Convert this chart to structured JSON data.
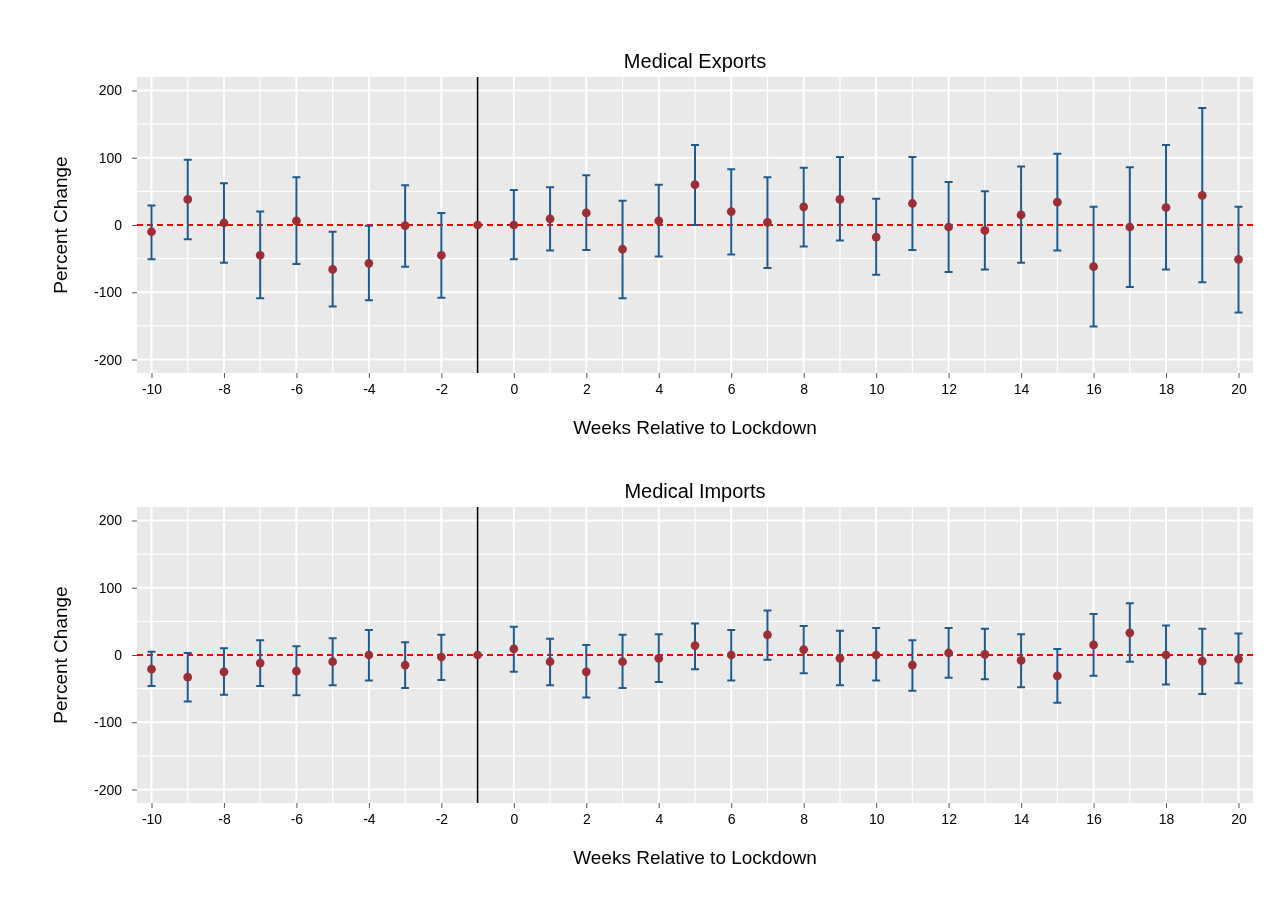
{
  "chart_data": [
    {
      "type": "scatter",
      "title": "Medical Exports",
      "xlabel": "Weeks Relative to Lockdown",
      "ylabel": "Percent Change",
      "x": [
        -10,
        -9,
        -8,
        -7,
        -6,
        -5,
        -4,
        -3,
        -2,
        -1,
        0,
        1,
        2,
        3,
        4,
        5,
        6,
        7,
        8,
        9,
        10,
        11,
        12,
        13,
        14,
        15,
        16,
        17,
        18,
        19,
        20
      ],
      "series": [
        {
          "color": "#9b2f35",
          "values": [
            -10,
            38,
            3,
            -45,
            6,
            -66,
            -57,
            -1,
            -45,
            0,
            0,
            9,
            18,
            -36,
            6,
            60,
            20,
            4,
            27,
            38,
            -18,
            32,
            -3,
            -8,
            15,
            34,
            -62,
            -3,
            26,
            44,
            -51
          ],
          "errors": [
            [
              -51,
              29
            ],
            [
              -21,
              97
            ],
            [
              -56,
              62
            ],
            [
              -109,
              20
            ],
            [
              -58,
              71
            ],
            [
              -121,
              -10
            ],
            [
              -112,
              -1
            ],
            [
              -62,
              59
            ],
            [
              -108,
              18
            ],
            null,
            [
              -51,
              52
            ],
            [
              -38,
              56
            ],
            [
              -37,
              74
            ],
            [
              -109,
              36
            ],
            [
              -47,
              60
            ],
            [
              0,
              119
            ],
            [
              -44,
              83
            ],
            [
              -64,
              71
            ],
            [
              -32,
              85
            ],
            [
              -23,
              101
            ],
            [
              -74,
              39
            ],
            [
              -37,
              101
            ],
            [
              -70,
              64
            ],
            [
              -66,
              50
            ],
            [
              -56,
              87
            ],
            [
              -38,
              106
            ],
            [
              -151,
              27
            ],
            [
              -92,
              86
            ],
            [
              -66,
              119
            ],
            [
              -85,
              174
            ],
            [
              -130,
              27
            ]
          ]
        }
      ],
      "marker": "circle",
      "xlim": [
        -10.4,
        20.4
      ],
      "xticks": [
        -10,
        -8,
        -6,
        -4,
        -2,
        0,
        2,
        4,
        6,
        8,
        10,
        12,
        14,
        16,
        18,
        20
      ],
      "ylim": [
        -220,
        220
      ],
      "yticks": [
        -200,
        -100,
        0,
        100,
        200
      ],
      "grid": true,
      "ref_lines": [
        {
          "axis": "y",
          "value": 0,
          "color": "#ff0000",
          "line_style": "dashed"
        },
        {
          "axis": "x",
          "value": -1,
          "color": "#000000",
          "line_style": "solid"
        }
      ]
    },
    {
      "type": "scatter",
      "title": "Medical Imports",
      "xlabel": "Weeks Relative to Lockdown",
      "ylabel": "Percent Change",
      "x": [
        -10,
        -9,
        -8,
        -7,
        -6,
        -5,
        -4,
        -3,
        -2,
        -1,
        0,
        1,
        2,
        3,
        4,
        5,
        6,
        7,
        8,
        9,
        10,
        11,
        12,
        13,
        14,
        15,
        16,
        17,
        18,
        19,
        20
      ],
      "series": [
        {
          "color": "#9b2f35",
          "values": [
            -21,
            -33,
            -25,
            -12,
            -24,
            -10,
            0,
            -15,
            -3,
            0,
            9,
            -10,
            -25,
            -10,
            -5,
            14,
            0,
            30,
            8,
            -5,
            0,
            -15,
            3,
            1,
            -8,
            -31,
            15,
            33,
            0,
            -9,
            -6
          ],
          "errors": [
            [
              -46,
              5
            ],
            [
              -69,
              3
            ],
            [
              -59,
              10
            ],
            [
              -46,
              22
            ],
            [
              -60,
              13
            ],
            [
              -45,
              25
            ],
            [
              -38,
              37
            ],
            [
              -49,
              19
            ],
            [
              -37,
              30
            ],
            null,
            [
              -25,
              42
            ],
            [
              -45,
              24
            ],
            [
              -63,
              15
            ],
            [
              -49,
              30
            ],
            [
              -40,
              31
            ],
            [
              -21,
              47
            ],
            [
              -38,
              37
            ],
            [
              -7,
              66
            ],
            [
              -27,
              43
            ],
            [
              -45,
              36
            ],
            [
              -38,
              40
            ],
            [
              -53,
              22
            ],
            [
              -34,
              40
            ],
            [
              -36,
              39
            ],
            [
              -48,
              31
            ],
            [
              -71,
              9
            ],
            [
              -31,
              61
            ],
            [
              -10,
              77
            ],
            [
              -44,
              44
            ],
            [
              -58,
              39
            ],
            [
              -42,
              32
            ]
          ]
        }
      ],
      "marker": "circle",
      "xlim": [
        -10.4,
        20.4
      ],
      "xticks": [
        -10,
        -8,
        -6,
        -4,
        -2,
        0,
        2,
        4,
        6,
        8,
        10,
        12,
        14,
        16,
        18,
        20
      ],
      "ylim": [
        -220,
        220
      ],
      "yticks": [
        -200,
        -100,
        0,
        100,
        200
      ],
      "grid": true,
      "ref_lines": [
        {
          "axis": "y",
          "value": 0,
          "color": "#ff0000",
          "line_style": "dashed"
        },
        {
          "axis": "x",
          "value": -1,
          "color": "#000000",
          "line_style": "solid"
        }
      ]
    }
  ]
}
